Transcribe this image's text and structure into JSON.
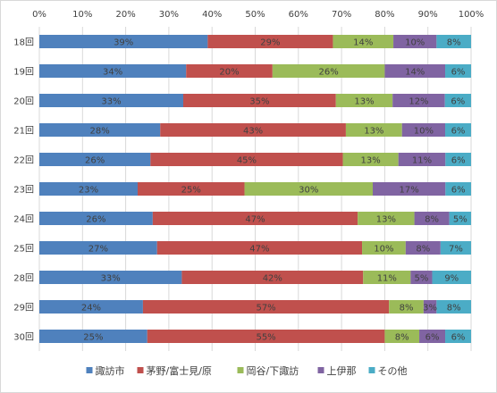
{
  "chart_data": {
    "type": "bar",
    "orientation": "horizontal",
    "stacked": "percent",
    "categories": [
      "18回",
      "19回",
      "20回",
      "21回",
      "22回",
      "23回",
      "24回",
      "25回",
      "28回",
      "29回",
      "30回"
    ],
    "x_ticks": [
      "0%",
      "10%",
      "20%",
      "30%",
      "40%",
      "50%",
      "60%",
      "70%",
      "80%",
      "90%",
      "100%"
    ],
    "xlim": [
      0,
      100
    ],
    "grid": true,
    "legend_position": "bottom",
    "series": [
      {
        "name": "諏訪市",
        "color": "#4f81bd",
        "values": [
          39,
          34,
          33,
          28,
          26,
          23,
          26,
          27,
          33,
          24,
          25
        ],
        "labels": [
          "39%",
          "34%",
          "33%",
          "28%",
          "26%",
          "23%",
          "26%",
          "27%",
          "33%",
          "24%",
          "25%"
        ]
      },
      {
        "name": "茅野/富士見/原",
        "color": "#c0504d",
        "values": [
          29,
          20,
          35,
          43,
          45,
          25,
          47,
          47,
          42,
          57,
          55
        ],
        "labels": [
          "29%",
          "20%",
          "35%",
          "43%",
          "45%",
          "25%",
          "47%",
          "47%",
          "42%",
          "57%",
          "55%"
        ]
      },
      {
        "name": "岡谷/下諏訪",
        "color": "#9bbb59",
        "values": [
          14,
          26,
          13,
          13,
          13,
          30,
          13,
          10,
          11,
          8,
          8
        ],
        "labels": [
          "14%",
          "26%",
          "13%",
          "13%",
          "13%",
          "30%",
          "13%",
          "10%",
          "11%",
          "8%",
          "8%"
        ]
      },
      {
        "name": "上伊那",
        "color": "#8064a2",
        "values": [
          10,
          14,
          12,
          10,
          11,
          17,
          8,
          8,
          5,
          3,
          6
        ],
        "labels": [
          "10%",
          "14%",
          "12%",
          "10%",
          "11%",
          "17%",
          "8%",
          "8%",
          "5%",
          "3%",
          "6%"
        ]
      },
      {
        "name": "その他",
        "color": "#4bacc6",
        "values": [
          8,
          6,
          6,
          6,
          6,
          6,
          5,
          7,
          9,
          8,
          6
        ],
        "labels": [
          "8%",
          "6%",
          "6%",
          "6%",
          "6%",
          "6%",
          "5%",
          "7%",
          "9%",
          "8%",
          "6%"
        ]
      }
    ]
  }
}
